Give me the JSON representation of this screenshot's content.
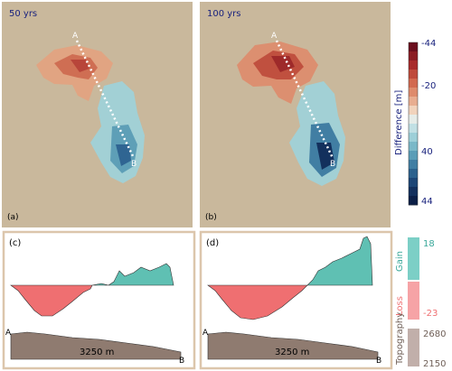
{
  "panels": {
    "a": {
      "label": "(a)",
      "time": "50 yrs",
      "point_a": "A",
      "point_b": "B"
    },
    "b": {
      "label": "(b)",
      "time": "100 yrs",
      "point_a": "A",
      "point_b": "B"
    },
    "c": {
      "label": "(c)",
      "distance": "3250 m",
      "point_a": "A",
      "point_b": "B"
    },
    "d": {
      "label": "(d)",
      "distance": "3250 m",
      "point_a": "A",
      "point_b": "B"
    }
  },
  "colorbar": {
    "title": "Difference [m]",
    "ticks": [
      "-44",
      "-20",
      "40",
      "44"
    ],
    "colors": [
      "#6b0f1e",
      "#8b1d24",
      "#a82b2b",
      "#bf4a3b",
      "#d2694f",
      "#de8b6c",
      "#e8ad90",
      "#f1d3bc",
      "#e6ece8",
      "#c1e0e4",
      "#9dcfd8",
      "#7ab8c8",
      "#5a9db7",
      "#417ea3",
      "#2c618d",
      "#1d4676",
      "#13305d",
      "#0b1f47"
    ]
  },
  "legend": {
    "gain": {
      "label": "Gain",
      "value": "18",
      "color": "#7ccfc6"
    },
    "loss": {
      "label": "Loss",
      "value": "-23",
      "color": "#f6a3a6"
    },
    "topography": {
      "label": "Topography",
      "max": "2680",
      "min": "2150",
      "color": "#c1afaa"
    }
  },
  "colors": {
    "background": "#c9b89c",
    "frame": "#dcc6ac",
    "gain_fill": "#5fc0b3",
    "loss_fill": "#ef6f71",
    "topo_fill": "#8f7b70"
  }
}
